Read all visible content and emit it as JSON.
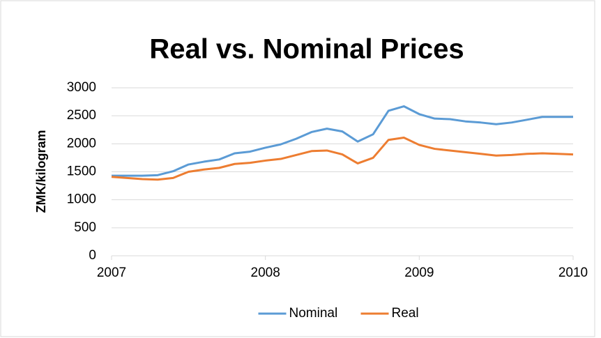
{
  "chart_data": {
    "type": "line",
    "title": "Real vs. Nominal Prices",
    "y_label": "ZMK/kilogram",
    "x": [
      2007.0,
      2007.1,
      2007.2,
      2007.3,
      2007.4,
      2007.5,
      2007.6,
      2007.7,
      2007.8,
      2007.9,
      2008.0,
      2008.1,
      2008.2,
      2008.3,
      2008.4,
      2008.5,
      2008.6,
      2008.7,
      2008.8,
      2008.9,
      2009.0,
      2009.1,
      2009.2,
      2009.3,
      2009.4,
      2009.5,
      2009.6,
      2009.7,
      2009.8,
      2009.9,
      2010.0
    ],
    "series": [
      {
        "name": "Nominal",
        "color": "#5b9bd5",
        "values": [
          1430,
          1430,
          1430,
          1440,
          1510,
          1630,
          1680,
          1720,
          1830,
          1860,
          1930,
          1990,
          2090,
          2210,
          2270,
          2220,
          2040,
          2170,
          2590,
          2670,
          2530,
          2450,
          2440,
          2400,
          2380,
          2350,
          2380,
          2430,
          2480,
          2480,
          2480
        ]
      },
      {
        "name": "Real",
        "color": "#ed7d31",
        "values": [
          1410,
          1390,
          1370,
          1360,
          1390,
          1500,
          1540,
          1570,
          1640,
          1660,
          1700,
          1730,
          1800,
          1870,
          1880,
          1810,
          1650,
          1750,
          2070,
          2110,
          1980,
          1910,
          1880,
          1850,
          1820,
          1790,
          1800,
          1820,
          1830,
          1820,
          1810
        ]
      }
    ],
    "xlim": [
      2007,
      2010
    ],
    "xticks": [
      2007,
      2008,
      2009,
      2010
    ],
    "ylim": [
      0,
      3000
    ],
    "yticks": [
      0,
      500,
      1000,
      1500,
      2000,
      2500,
      3000
    ],
    "grid": true,
    "legend": "bottom"
  }
}
